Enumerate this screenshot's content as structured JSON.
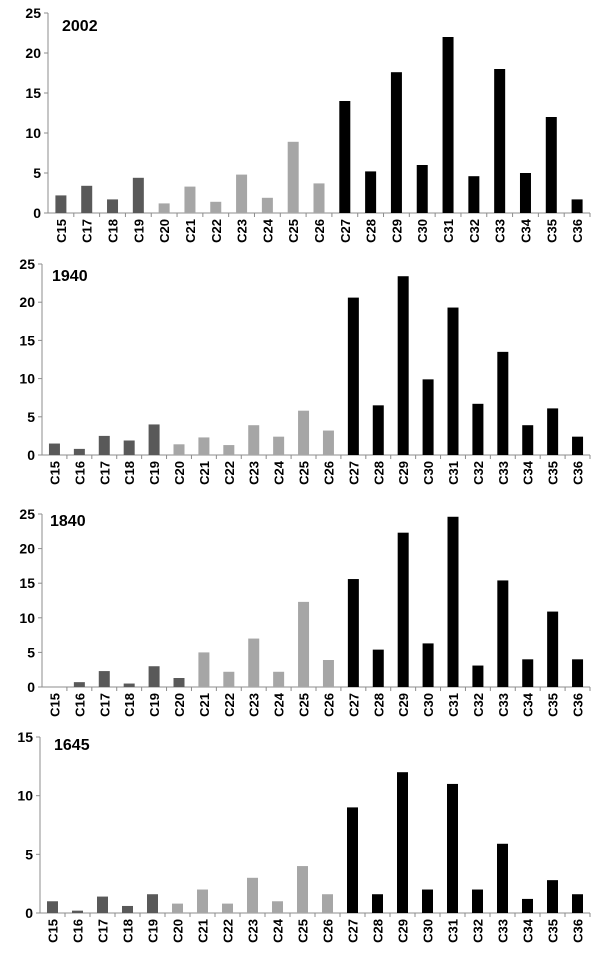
{
  "chart_data": [
    {
      "type": "bar",
      "title": "2002",
      "ylim": [
        0,
        25
      ],
      "yticks": [
        0,
        5,
        10,
        15,
        20,
        25
      ],
      "categories": [
        "C15",
        "C17",
        "C18",
        "C19",
        "C20",
        "C21",
        "C22",
        "C23",
        "C24",
        "C25",
        "C26",
        "C27",
        "C28",
        "C29",
        "C30",
        "C31",
        "C32",
        "C33",
        "C34",
        "C35",
        "C36"
      ],
      "values": [
        2.2,
        3.4,
        1.7,
        4.4,
        1.2,
        3.3,
        1.4,
        4.8,
        1.9,
        8.9,
        3.7,
        14.0,
        5.2,
        17.6,
        6.0,
        22.0,
        4.6,
        18.0,
        5.0,
        12.0,
        1.7
      ],
      "group_colors": [
        "#595959",
        "#595959",
        "#595959",
        "#595959",
        "#a6a6a6",
        "#a6a6a6",
        "#a6a6a6",
        "#a6a6a6",
        "#a6a6a6",
        "#a6a6a6",
        "#a6a6a6",
        "#000000",
        "#000000",
        "#000000",
        "#000000",
        "#000000",
        "#000000",
        "#000000",
        "#000000",
        "#000000",
        "#000000"
      ],
      "grid": false,
      "legend": "none"
    },
    {
      "type": "bar",
      "title": "1940",
      "ylim": [
        0,
        25
      ],
      "yticks": [
        0,
        5,
        10,
        15,
        20,
        25
      ],
      "categories": [
        "C15",
        "C16",
        "C17",
        "C18",
        "C19",
        "C20",
        "C21",
        "C22",
        "C23",
        "C24",
        "C25",
        "C26",
        "C27",
        "C28",
        "C29",
        "C30",
        "C31",
        "C32",
        "C33",
        "C34",
        "C35",
        "C36"
      ],
      "values": [
        1.5,
        0.8,
        2.5,
        1.9,
        4.0,
        1.4,
        2.3,
        1.3,
        3.9,
        2.4,
        5.8,
        3.2,
        20.6,
        6.5,
        23.4,
        9.9,
        19.3,
        6.7,
        13.5,
        3.9,
        6.1,
        2.4
      ],
      "group_colors": [
        "#595959",
        "#595959",
        "#595959",
        "#595959",
        "#595959",
        "#a6a6a6",
        "#a6a6a6",
        "#a6a6a6",
        "#a6a6a6",
        "#a6a6a6",
        "#a6a6a6",
        "#a6a6a6",
        "#000000",
        "#000000",
        "#000000",
        "#000000",
        "#000000",
        "#000000",
        "#000000",
        "#000000",
        "#000000",
        "#000000"
      ],
      "grid": false,
      "legend": "none"
    },
    {
      "type": "bar",
      "title": "1840",
      "ylim": [
        0,
        25
      ],
      "yticks": [
        0,
        5,
        10,
        15,
        20,
        25
      ],
      "categories": [
        "C15",
        "C16",
        "C17",
        "C18",
        "C19",
        "C20",
        "C21",
        "C22",
        "C23",
        "C24",
        "C25",
        "C26",
        "C27",
        "C28",
        "C29",
        "C30",
        "C31",
        "C32",
        "C33",
        "C34",
        "C35",
        "C36"
      ],
      "values": [
        0.0,
        0.7,
        2.3,
        0.5,
        3.0,
        1.3,
        5.0,
        2.2,
        7.0,
        2.2,
        12.3,
        3.9,
        15.6,
        5.4,
        22.3,
        6.3,
        24.6,
        3.1,
        15.4,
        4.0,
        10.9,
        4.0
      ],
      "group_colors": [
        "#595959",
        "#595959",
        "#595959",
        "#595959",
        "#595959",
        "#595959",
        "#a6a6a6",
        "#a6a6a6",
        "#a6a6a6",
        "#a6a6a6",
        "#a6a6a6",
        "#a6a6a6",
        "#000000",
        "#000000",
        "#000000",
        "#000000",
        "#000000",
        "#000000",
        "#000000",
        "#000000",
        "#000000",
        "#000000"
      ],
      "grid": false,
      "legend": "none"
    },
    {
      "type": "bar",
      "title": "1645",
      "ylim": [
        0,
        15
      ],
      "yticks": [
        0,
        5,
        10,
        15
      ],
      "categories": [
        "C15",
        "C16",
        "C17",
        "C18",
        "C19",
        "C20",
        "C21",
        "C22",
        "C23",
        "C24",
        "C25",
        "C26",
        "C27",
        "C28",
        "C29",
        "C30",
        "C31",
        "C32",
        "C33",
        "C34",
        "C35",
        "C36"
      ],
      "values": [
        1.0,
        0.2,
        1.4,
        0.6,
        1.6,
        0.8,
        2.0,
        0.8,
        3.0,
        1.0,
        4.0,
        1.6,
        9.0,
        1.6,
        12.0,
        2.0,
        11.0,
        2.0,
        5.9,
        1.2,
        2.8,
        1.6
      ],
      "group_colors": [
        "#595959",
        "#595959",
        "#595959",
        "#595959",
        "#595959",
        "#a6a6a6",
        "#a6a6a6",
        "#a6a6a6",
        "#a6a6a6",
        "#a6a6a6",
        "#a6a6a6",
        "#a6a6a6",
        "#000000",
        "#000000",
        "#000000",
        "#000000",
        "#000000",
        "#000000",
        "#000000",
        "#000000",
        "#000000",
        "#000000"
      ],
      "grid": false,
      "legend": "none"
    }
  ]
}
